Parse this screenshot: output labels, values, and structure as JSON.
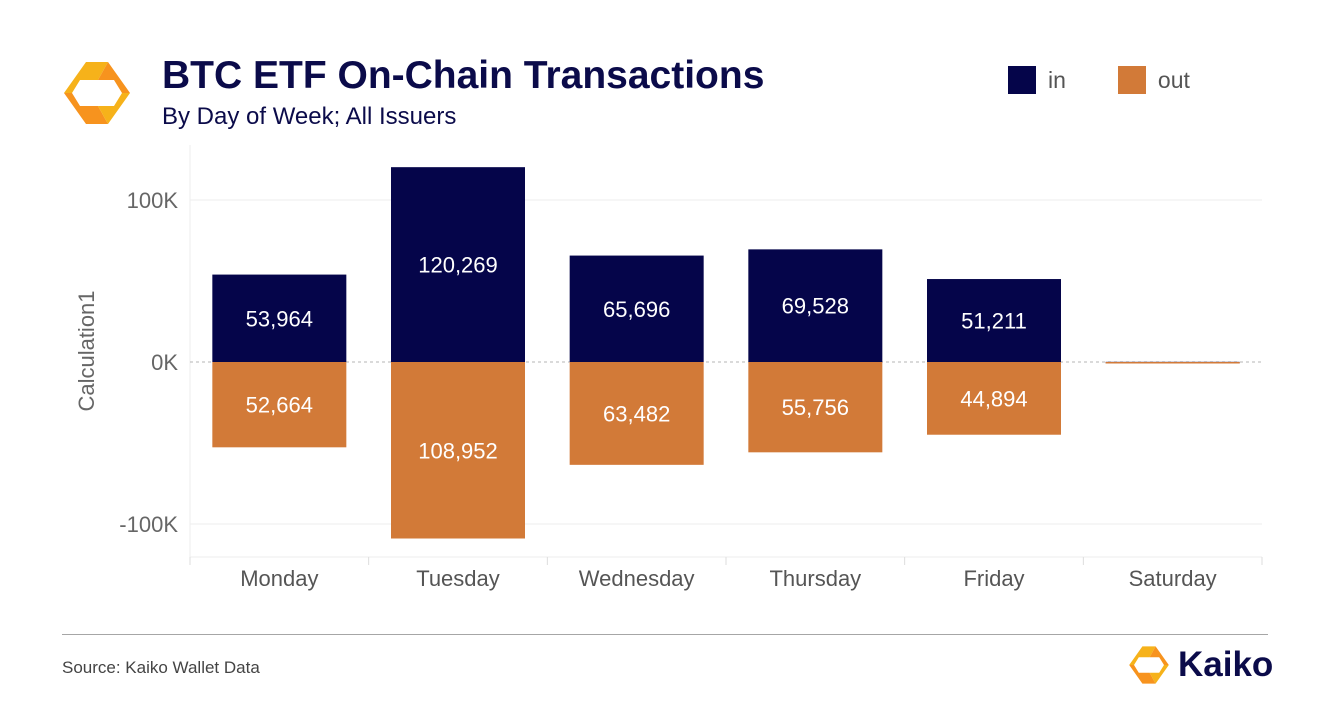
{
  "header": {
    "title": "BTC ETF On-Chain Transactions",
    "subtitle": "By Day of Week; All Issuers",
    "logo_icon": "kaiko-logo-icon"
  },
  "footer": {
    "source": "Source: Kaiko Wallet Data",
    "brand": "Kaiko"
  },
  "colors": {
    "in": "#05054a",
    "out": "#d27a38",
    "text_dark": "#0b0b4a",
    "logo_orange": "#f7931e",
    "logo_amber": "#f6b21a"
  },
  "chart_data": {
    "type": "bar",
    "ylabel": "Calculation1",
    "xlabel": "",
    "ylim": [
      -110000,
      122000
    ],
    "yticks": [
      {
        "value": 100000,
        "label": "100K"
      },
      {
        "value": 0,
        "label": "0K"
      },
      {
        "value": -100000,
        "label": "-100K"
      }
    ],
    "categories": [
      "Monday",
      "Tuesday",
      "Wednesday",
      "Thursday",
      "Friday",
      "Saturday"
    ],
    "series": [
      {
        "name": "in",
        "values": [
          53964,
          120269,
          65696,
          69528,
          51211,
          100
        ],
        "data_labels": [
          "53,964",
          "120,269",
          "65,696",
          "69,528",
          "51,211",
          ""
        ]
      },
      {
        "name": "out",
        "values": [
          -52664,
          -108952,
          -63482,
          -55756,
          -44894,
          -100
        ],
        "data_labels": [
          "52,664",
          "108,952",
          "63,482",
          "55,756",
          "44,894",
          ""
        ]
      }
    ],
    "legend": "top-right",
    "grid": true
  }
}
